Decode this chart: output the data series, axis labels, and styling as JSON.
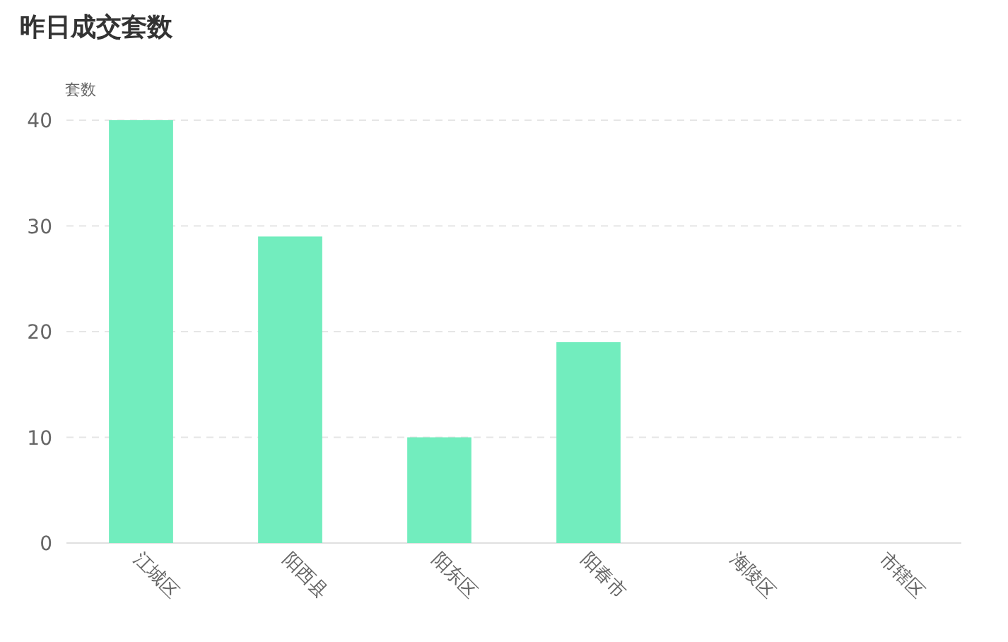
{
  "chart_data": {
    "type": "bar",
    "title": "昨日成交套数",
    "ylabel": "套数",
    "categories": [
      "江城区",
      "阳西县",
      "阳东区",
      "阳春市",
      "海陵区",
      "市辖区"
    ],
    "values": [
      40,
      29,
      10,
      19,
      0,
      0
    ],
    "color": "#72edbe",
    "ylim": [
      0,
      40
    ],
    "yticks": [
      0,
      10,
      20,
      30,
      40
    ],
    "grid": "y"
  }
}
